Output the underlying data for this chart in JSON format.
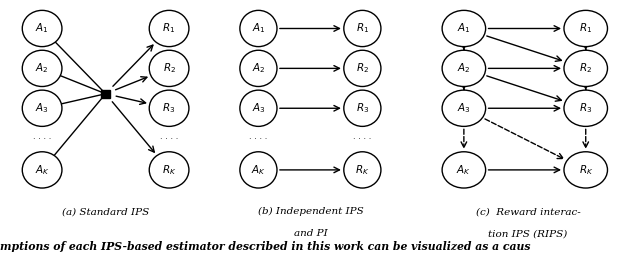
{
  "panel_a_caption": "(a) Standard IPS",
  "panel_b_caption_1": "(b) Independent IPS",
  "panel_b_caption_2": "and PI",
  "panel_c_caption_1": "(c)  Reward interac-",
  "panel_c_caption_2": "tion IPS (RIPS)",
  "bottom_text": "mptions of each IPS-based estimator described in this work can be visualized as a caus",
  "node_labels_a": [
    "1",
    "2",
    "3",
    "K"
  ],
  "node_labels_r": [
    "1",
    "2",
    "3",
    "K"
  ]
}
